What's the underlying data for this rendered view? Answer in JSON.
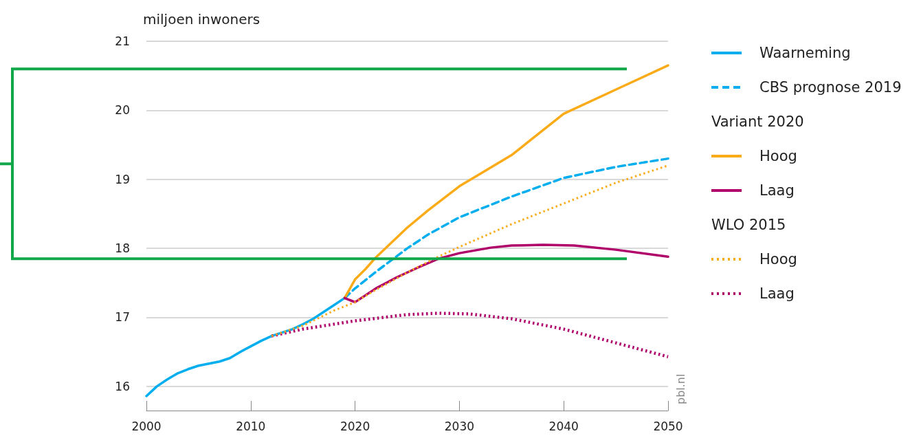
{
  "chart_data": {
    "type": "line",
    "ylabel": "miljoen inwoners",
    "xlim": [
      2000,
      2050
    ],
    "xticks": [
      2000,
      2010,
      2020,
      2030,
      2040,
      2050
    ],
    "ylim": [
      15.65,
      21
    ],
    "yticks": [
      16,
      17,
      18,
      19,
      20,
      21
    ],
    "grid": "y",
    "legend": "right",
    "marker": "none",
    "series": [
      {
        "name": "Waarneming",
        "color": "#00aeef",
        "line_style": "solid",
        "x": [
          2000,
          2001,
          2002,
          2003,
          2004,
          2005,
          2006,
          2007,
          2008,
          2009,
          2010,
          2011,
          2012,
          2013,
          2014,
          2015,
          2016,
          2017,
          2018,
          2019
        ],
        "values": [
          15.86,
          16.0,
          16.1,
          16.19,
          16.25,
          16.3,
          16.33,
          16.36,
          16.41,
          16.5,
          16.58,
          16.66,
          16.73,
          16.78,
          16.83,
          16.9,
          16.98,
          17.08,
          17.18,
          17.28
        ]
      },
      {
        "name": "CBS prognose 2019",
        "color": "#00aeef",
        "line_style": "dashed",
        "x": [
          2019,
          2020,
          2022,
          2025,
          2027,
          2030,
          2035,
          2040,
          2045,
          2050
        ],
        "values": [
          17.28,
          17.42,
          17.66,
          18.0,
          18.2,
          18.45,
          18.75,
          19.02,
          19.18,
          19.3
        ]
      },
      {
        "name": "Hoog",
        "color": "#fbab18",
        "line_style": "solid",
        "x": [
          2019,
          2020,
          2021,
          2022,
          2025,
          2027,
          2030,
          2035,
          2040,
          2045,
          2050
        ],
        "values": [
          17.28,
          17.55,
          17.7,
          17.87,
          18.3,
          18.55,
          18.9,
          19.35,
          19.95,
          20.3,
          20.65
        ]
      },
      {
        "name": "Laag",
        "color": "#b0006a",
        "line_style": "solid",
        "x": [
          2019,
          2020,
          2022,
          2024,
          2026,
          2028,
          2030,
          2033,
          2035,
          2038,
          2041,
          2045,
          2050
        ],
        "values": [
          17.28,
          17.22,
          17.42,
          17.58,
          17.72,
          17.85,
          17.93,
          18.01,
          18.04,
          18.05,
          18.04,
          17.98,
          17.88
        ]
      },
      {
        "name": "Hoog",
        "color": "#fbab18",
        "line_style": "dotted",
        "x": [
          2012,
          2015,
          2018,
          2020,
          2022,
          2025,
          2028,
          2030,
          2035,
          2040,
          2045,
          2050
        ],
        "values": [
          16.73,
          16.88,
          17.1,
          17.22,
          17.4,
          17.65,
          17.88,
          18.02,
          18.35,
          18.65,
          18.95,
          19.2
        ]
      },
      {
        "name": "Laag",
        "color": "#b0006a",
        "line_style": "dotted",
        "x": [
          2012,
          2015,
          2020,
          2025,
          2028,
          2031,
          2035,
          2040,
          2045,
          2050
        ],
        "values": [
          16.73,
          16.83,
          16.95,
          17.04,
          17.06,
          17.05,
          16.98,
          16.83,
          16.63,
          16.43
        ]
      }
    ],
    "annotations": [
      "Variant 2020",
      "WLO 2015",
      "pbl.nl"
    ],
    "ref_lines": [
      {
        "axis": "y",
        "value": 20.6,
        "color": "#10a84b"
      },
      {
        "axis": "y",
        "value": 17.85,
        "color": "#10a84b"
      }
    ]
  }
}
